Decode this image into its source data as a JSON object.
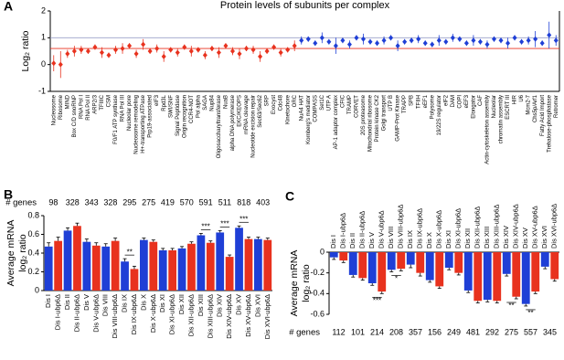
{
  "chart_data": [
    {
      "type": "dot",
      "panel_label": "A",
      "title": "Protein  levels of subunits per complex",
      "ylabel": "Log₂ ratio",
      "categories": [
        "Nucleosome",
        "Ribosome",
        "MIND",
        "Box C/D snoRNP",
        "RNA Pol I",
        "RNA Pol II",
        "ARP2/3",
        "TFIIIC",
        "CSM",
        "F0/F1 ATP synthase",
        "RNA Pol III",
        "Nucleolar pore",
        "Nucleosome remodeling",
        "H+-transporting ATPase",
        "Prp19-associated",
        "eIF3",
        "Rpd3L",
        "SWI/SNF",
        "Signal Peptidase",
        "Origin recognition",
        "CCR4-NOT",
        "Pol alpha",
        "SAGA",
        "Nup84",
        "Oligosaccharyltransferase",
        "NuaB",
        "alpha DNA polymerase",
        "EKC/KEOPS",
        "mRNA cleavage",
        "Nucleotide excision repair",
        "Sec63/Sec62",
        "SRP",
        "Exocyst",
        "Cdc48",
        "Kinetochore",
        "ORC",
        "NuA4 HAT",
        "Kornberg's mediator",
        "COMPASS",
        "Set1C",
        "UTP A",
        "AP-1 adaptor complex",
        "CFIC",
        "TRAMP",
        "CORVET",
        "20S proteasome",
        "Mitochondrial ribosome",
        "Protein kinase CK2",
        "Golgi transport",
        "UTP B",
        "GAMP-Prot Kinase",
        "TRAPP",
        "SPB",
        "TFIIH",
        "eEF1",
        "Polysome",
        "19/22S regulator",
        "eIF2",
        "DAM",
        "COPI",
        "eEF3",
        "Elongator",
        "CAF",
        "Actin-cytoskeleton assembly",
        "Nucleolar",
        "chromatin assembly",
        "ESCRT III",
        "HIR",
        "U6",
        "Mcm2-7",
        "Chs5p/Arf1",
        "Fatty Acid Import",
        "Trehalose-phosphatase",
        "Retromer"
      ],
      "series": [
        {
          "color": "#e8321e",
          "values": [
            0.05,
            0.0,
            0.4,
            0.5,
            0.55,
            0.5,
            0.65,
            0.45,
            0.35,
            0.55,
            0.6,
            0.7,
            0.4,
            0.75,
            0.5,
            0.6,
            0.3,
            0.55,
            0.45,
            0.65,
            0.5,
            0.55,
            0.35,
            0.6,
            0.45,
            0.7,
            0.5,
            0.4,
            0.6,
            0.55,
            0.3,
            0.5,
            0.65,
            0.45,
            0.55,
            0.7,
            null,
            null,
            null,
            null,
            null,
            null,
            null,
            null,
            null,
            null,
            null,
            null,
            null,
            null,
            null,
            null,
            null,
            null,
            null,
            null,
            null,
            null,
            null,
            null,
            null,
            null,
            null,
            null,
            null,
            null,
            null,
            null,
            null,
            null,
            null,
            null,
            null,
            null
          ],
          "errors": [
            0.3,
            0.5,
            0.15,
            0.2,
            0.15,
            0.1,
            0.1,
            0.2,
            0.1,
            0.15,
            0.2,
            0.1,
            0.15,
            0.2,
            0.1,
            0.15,
            0.2,
            0.1,
            0.15,
            0.1,
            0.2,
            0.1,
            0.15,
            0.1,
            0.2,
            0.1,
            0.15,
            0.2,
            0.1,
            0.15,
            0.2,
            0.1,
            0.1,
            0.15,
            0.1,
            0.2,
            null,
            null,
            null,
            null,
            null,
            null,
            null,
            null,
            null,
            null,
            null,
            null,
            null,
            null,
            null,
            null,
            null,
            null,
            null,
            null,
            null,
            null,
            null,
            null,
            null,
            null,
            null,
            null,
            null,
            null,
            null,
            null,
            null,
            null,
            null,
            null,
            null,
            null
          ]
        },
        {
          "color": "#1f3fd6",
          "values": [
            null,
            null,
            null,
            null,
            null,
            null,
            null,
            null,
            null,
            null,
            null,
            null,
            null,
            null,
            null,
            null,
            null,
            null,
            null,
            null,
            null,
            null,
            null,
            null,
            null,
            null,
            null,
            null,
            null,
            null,
            null,
            null,
            null,
            null,
            null,
            null,
            0.9,
            0.95,
            0.8,
            1.0,
            0.85,
            0.7,
            0.9,
            0.75,
            1.0,
            0.95,
            0.85,
            0.8,
            0.9,
            1.0,
            0.7,
            0.85,
            0.9,
            0.95,
            0.8,
            0.75,
            0.9,
            0.85,
            1.0,
            0.95,
            0.8,
            0.9,
            0.85,
            0.75,
            0.95,
            0.9,
            0.8,
            1.0,
            0.85,
            0.9,
            0.95,
            0.8,
            1.1,
            0.9
          ],
          "errors": [
            null,
            null,
            null,
            null,
            null,
            null,
            null,
            null,
            null,
            null,
            null,
            null,
            null,
            null,
            null,
            null,
            null,
            null,
            null,
            null,
            null,
            null,
            null,
            null,
            null,
            null,
            null,
            null,
            null,
            null,
            null,
            null,
            null,
            null,
            null,
            null,
            0.15,
            0.1,
            0.1,
            0.2,
            0.1,
            0.3,
            0.1,
            0.15,
            0.1,
            0.2,
            0.1,
            0.1,
            0.15,
            0.1,
            0.2,
            0.1,
            0.1,
            0.15,
            0.1,
            0.1,
            0.2,
            0.1,
            0.15,
            0.1,
            0.1,
            0.2,
            0.1,
            0.15,
            0.1,
            0.1,
            0.2,
            0.1,
            0.1,
            0.15,
            0.3,
            0.1,
            0.5,
            0.2
          ]
        }
      ],
      "hlines": [
        {
          "value": 0.6,
          "color": "#e8321e"
        },
        {
          "value": 1,
          "color": "#9aa0c8"
        }
      ],
      "ylim": [
        -1,
        2
      ],
      "yticks": [
        -1,
        0,
        1,
        2
      ]
    },
    {
      "type": "bar",
      "panel_label": "B",
      "ylabel": [
        "Average mRNA",
        "log₂ ratio"
      ],
      "genes_label": "# genes",
      "categories": [
        "Dis I",
        "Dis I-ubp6Δ",
        "Dis II",
        "Dis II-ubp6Δ",
        "Dis V",
        "Dis V-ubp6Δ",
        "Dis VIII",
        "Dis VIII-ubp6Δ",
        "Dis IX",
        "Dis IX-ubp6Δ",
        "Dis X",
        "Dis X-ubp6Δ",
        "Dis XI",
        "Dis XI-ubp6Δ",
        "Dis XII",
        "Dis XII-ubp6Δ",
        "Dis XIII",
        "Dis XIII-ubp6Δ",
        "Dis XIV",
        "Dis XIV-ubp6Δ",
        "Dis XV",
        "Dis XV-ubp6Δ",
        "Dis XVI",
        "Dis XVI-ubp6Δ"
      ],
      "values": [
        0.47,
        0.53,
        0.64,
        0.69,
        0.52,
        0.48,
        0.47,
        0.53,
        0.31,
        0.23,
        0.54,
        0.52,
        0.43,
        0.43,
        0.45,
        0.5,
        0.59,
        0.51,
        0.62,
        0.36,
        0.67,
        0.55,
        0.55,
        0.54
      ],
      "errors": [
        0.04,
        0.04,
        0.03,
        0.03,
        0.03,
        0.03,
        0.03,
        0.03,
        0.03,
        0.03,
        0.02,
        0.02,
        0.02,
        0.02,
        0.02,
        0.02,
        0.02,
        0.02,
        0.02,
        0.02,
        0.02,
        0.02,
        0.02,
        0.02
      ],
      "colors": [
        "#1f3fd6",
        "#e8321e"
      ],
      "gene_counts": [
        98,
        328,
        343,
        328,
        295,
        275,
        419,
        570,
        591,
        511,
        818,
        403
      ],
      "significance": [
        null,
        null,
        null,
        null,
        "**",
        null,
        null,
        null,
        "***",
        "***",
        "***",
        null
      ],
      "ylim": [
        0,
        0.8
      ],
      "yticks": [
        0,
        0.2,
        0.4,
        0.6,
        0.8
      ]
    },
    {
      "type": "bar",
      "panel_label": "C",
      "ylabel": [
        "Average mRNA",
        "log₂ ratio"
      ],
      "genes_label": "# genes",
      "categories": [
        "Dis I",
        "Dis I-ubp6Δ",
        "Dis II",
        "Dis II-ubp6Δ",
        "Dis V",
        "Dis V-ubp6Δ",
        "Dis VIII",
        "Dis VIII-ubp6Δ",
        "Dis IX",
        "Dis IX-ubp6Δ",
        "Dis X",
        "Dis X-ubp6Δ",
        "Dis XI",
        "Dis XI-ubp6Δ",
        "Dis XII",
        "Dis XII-ubp6Δ",
        "Dis XIII",
        "Dis XIII-ubp6Δ",
        "Dis XIV",
        "Dis XIV-ubp6Δ",
        "Dis XV",
        "Dis XV-ubp6Δ",
        "Dis XVI",
        "Dis XVI-ubp6Δ"
      ],
      "values": [
        -0.05,
        -0.08,
        -0.22,
        -0.25,
        -0.3,
        -0.38,
        -0.17,
        -0.16,
        -0.12,
        -0.2,
        -0.27,
        -0.33,
        -0.15,
        -0.2,
        -0.37,
        -0.47,
        -0.46,
        -0.47,
        -0.21,
        -0.43,
        -0.5,
        -0.38,
        -0.14,
        -0.26
      ],
      "errors": [
        0.02,
        0.02,
        0.02,
        0.02,
        0.02,
        0.02,
        0.02,
        0.02,
        0.03,
        0.03,
        0.02,
        0.02,
        0.02,
        0.02,
        0.02,
        0.02,
        0.02,
        0.02,
        0.02,
        0.02,
        0.02,
        0.02,
        0.02,
        0.02
      ],
      "colors": [
        "#1f3fd6",
        "#e8321e"
      ],
      "gene_counts": [
        112,
        101,
        214,
        208,
        357,
        156,
        249,
        481,
        292,
        275,
        557,
        345
      ],
      "significance": [
        null,
        null,
        "***",
        "*",
        null,
        null,
        null,
        null,
        null,
        "**",
        "**",
        null
      ],
      "ylim": [
        -0.6,
        0
      ],
      "yticks": [
        -0.6,
        -0.4,
        -0.2,
        0
      ]
    }
  ]
}
